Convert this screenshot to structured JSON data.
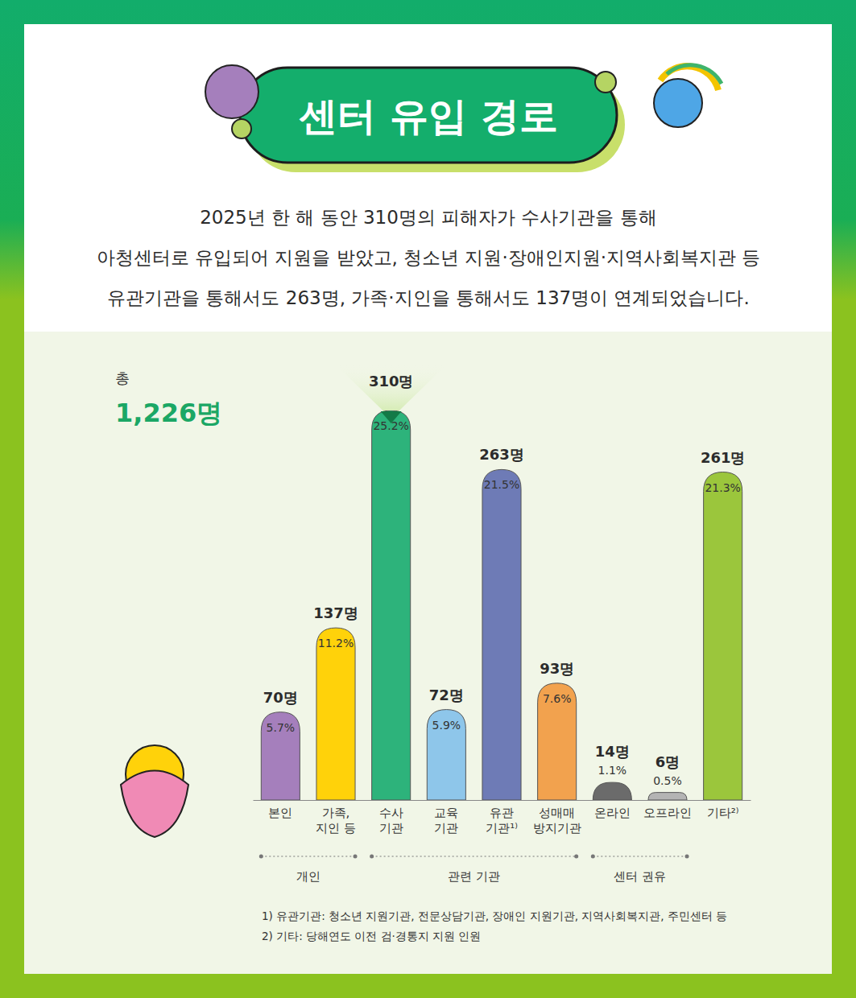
{
  "chart_data": {
    "type": "bar",
    "title": "센터 유입 경로",
    "subtitle": [
      "2025년 한 해 동안 310명의 피해자가 수사기관을 통해",
      "아청센터로 유입되어 지원을 받았고, 청소년 지원·장애인지원·지역사회복지관 등",
      "유관기관을 통해서도 263명, 가족·지인을 통해서도 137명이 연계되었습니다."
    ],
    "total_label": "총",
    "total": "1,226명",
    "categories": [
      "본인",
      "가족,\n지인 등",
      "수사\n기관",
      "교육\n기관",
      "유관\n기관¹⁾",
      "성매매\n방지기관",
      "온라인",
      "오프라인",
      "기타²⁾"
    ],
    "values": [
      70,
      137,
      310,
      72,
      263,
      93,
      14,
      6,
      261
    ],
    "value_labels": [
      "70명",
      "137명",
      "310명",
      "72명",
      "263명",
      "93명",
      "14명",
      "6명",
      "261명"
    ],
    "share_labels": [
      "5.7%",
      "11.2%",
      "25.2%",
      "5.9%",
      "21.5%",
      "7.6%",
      "1.1%",
      "0.5%",
      "21.3%"
    ],
    "colors": [
      "#a57fbc",
      "#ffd20a",
      "#2db37b",
      "#8ec6ea",
      "#6e7bb6",
      "#f2a24e",
      "#6b6b6b",
      "#b4b4b4",
      "#9bc63c"
    ],
    "groups": [
      {
        "label": "개인",
        "from": 0,
        "to": 1
      },
      {
        "label": "관련 기관",
        "from": 2,
        "to": 5
      },
      {
        "label": "센터 권유",
        "from": 6,
        "to": 7
      }
    ],
    "notes": [
      "1) 유관기관: 청소년 지원기관, 전문상담기관, 장애인 지원기관, 지역사회복지관, 주민센터 등",
      "2) 기타: 당해연도 이전 검·경통지 지원 인원"
    ],
    "ylim": [
      0,
      310
    ],
    "tick_labels": "x",
    "data_labels": true
  }
}
